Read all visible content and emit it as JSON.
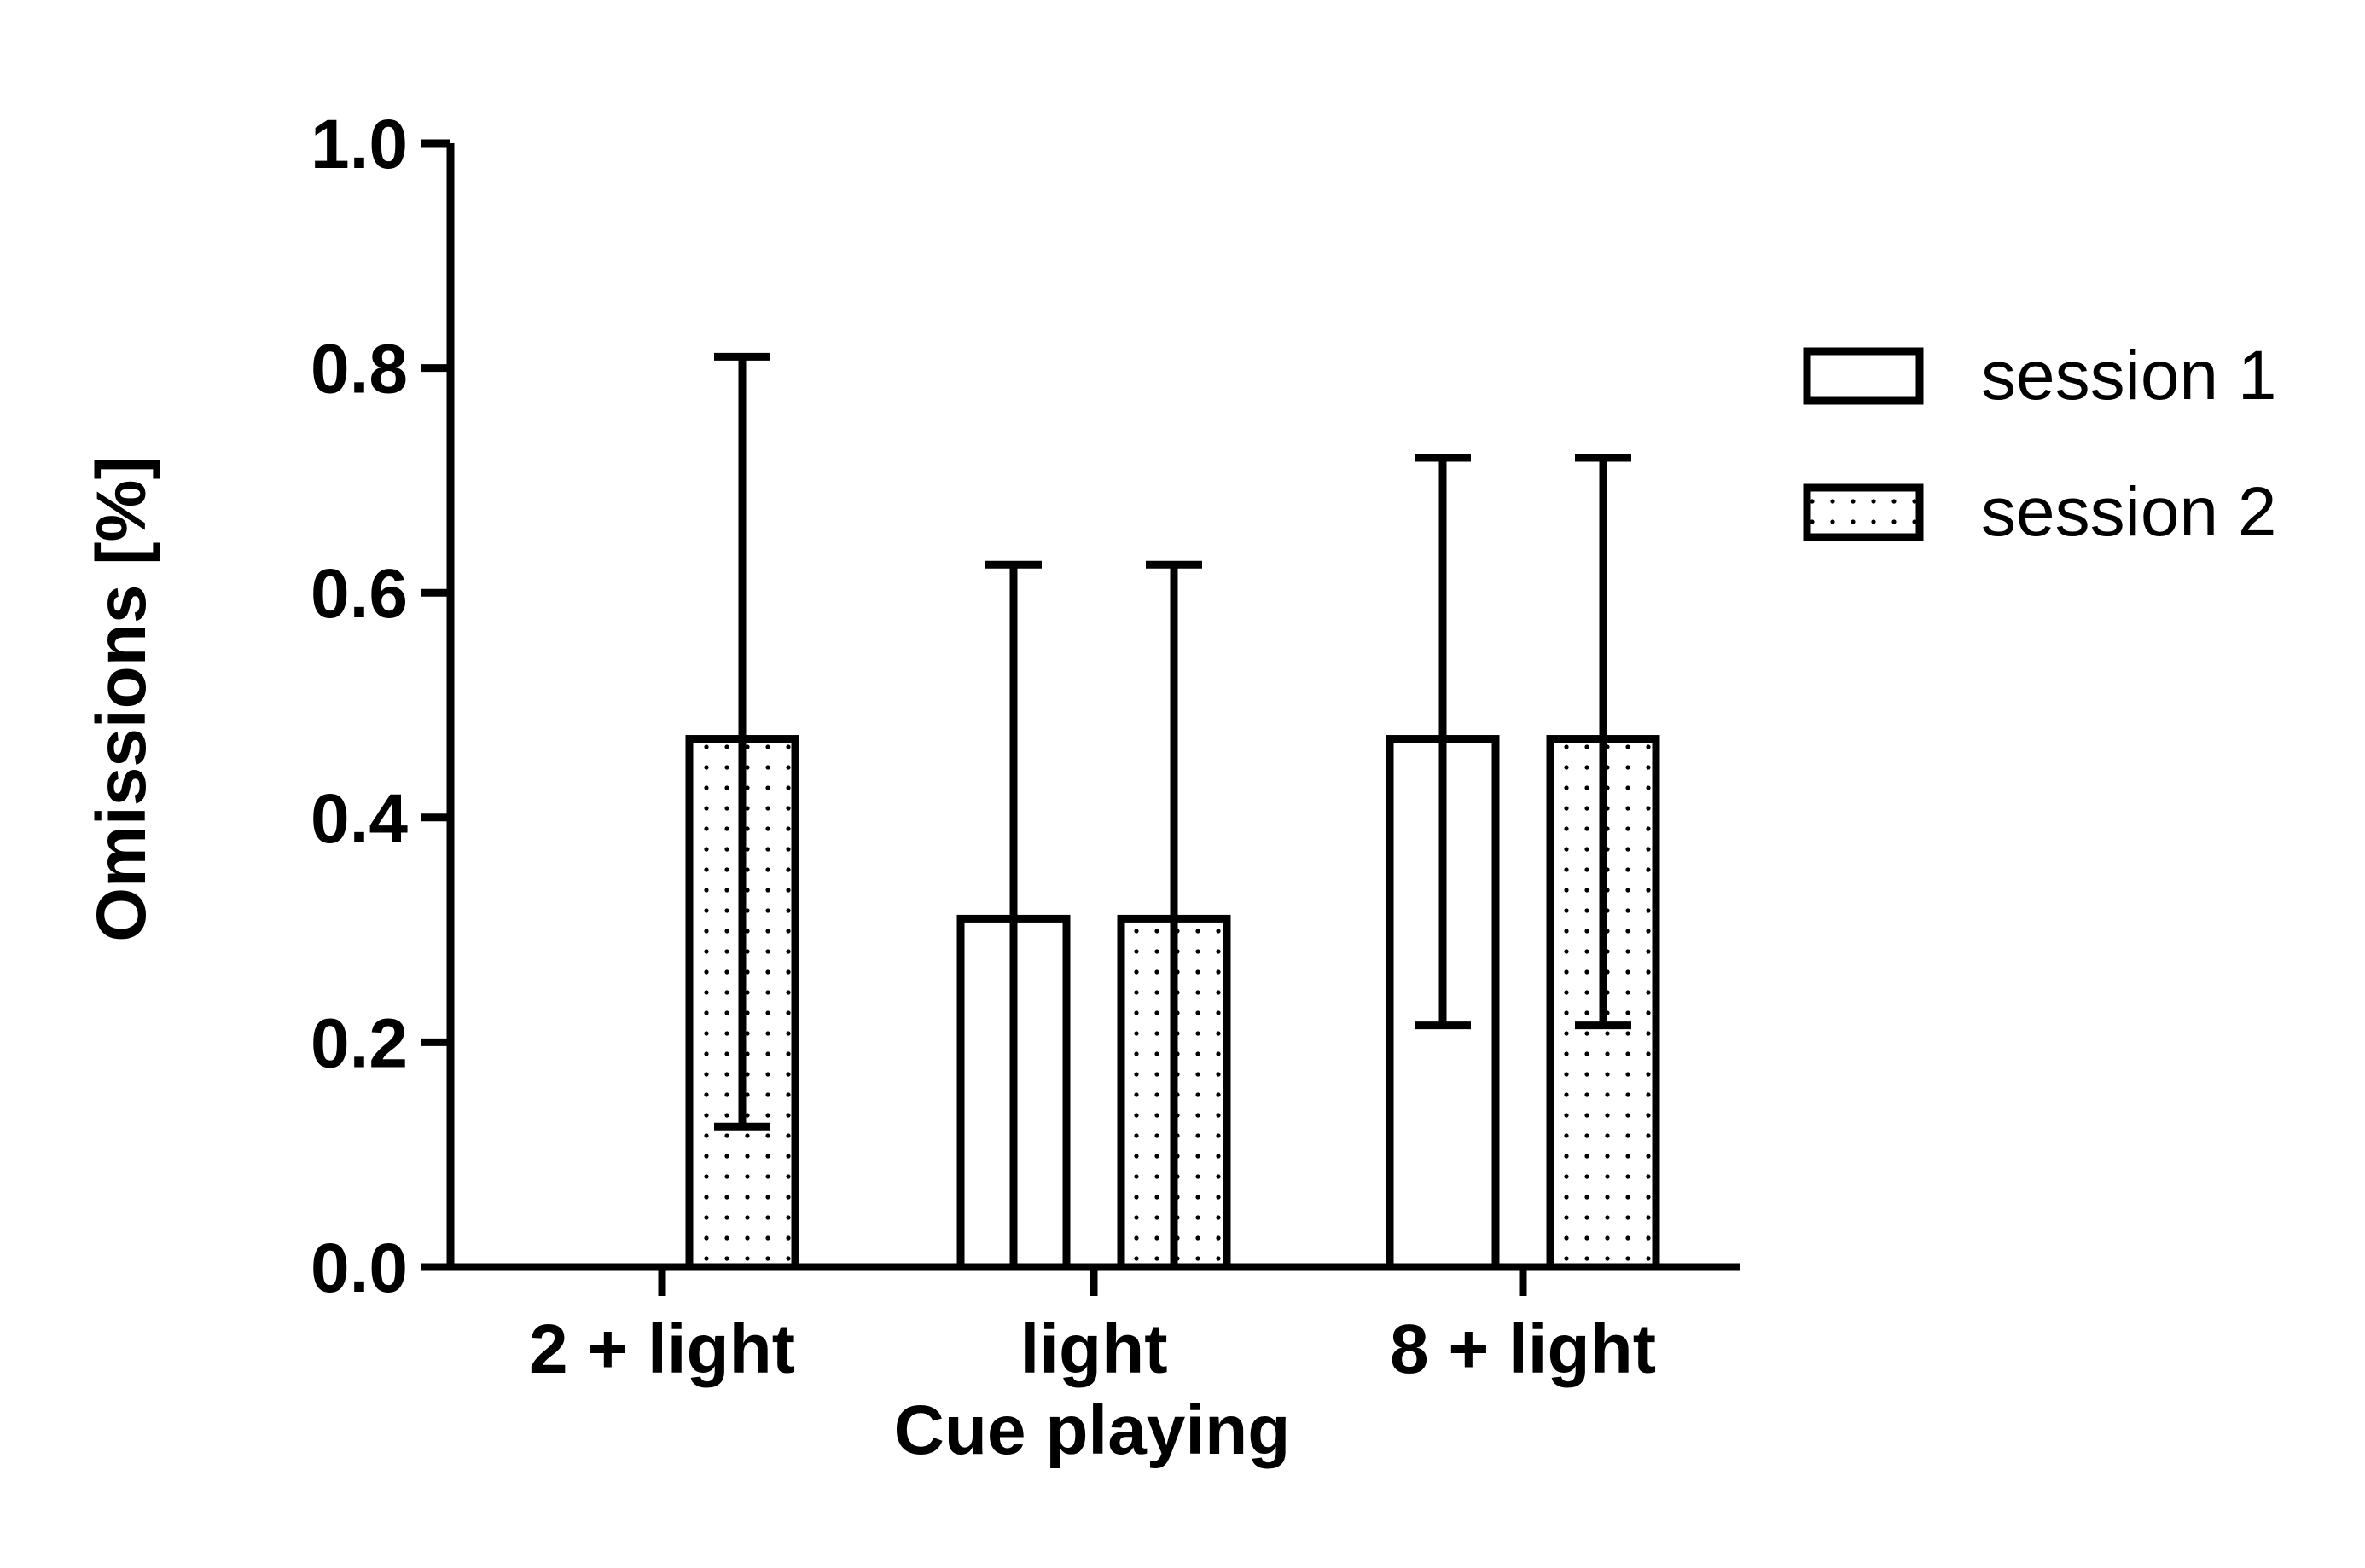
{
  "chart_data": {
    "type": "bar",
    "title": "",
    "xlabel": "Cue playing",
    "ylabel": "Omissions [%]",
    "ylim": [
      0,
      1.0
    ],
    "yticks": [
      "0.0",
      "0.2",
      "0.4",
      "0.6",
      "0.8",
      "1.0"
    ],
    "categories": [
      "2 + light",
      "light",
      "8 + light"
    ],
    "series": [
      {
        "name": "session 1",
        "pattern": "open",
        "values": [
          0,
          0.31,
          0.47
        ],
        "error_upper": [
          0,
          0.625,
          0.72
        ],
        "error_lower": [
          0,
          0,
          0.215
        ]
      },
      {
        "name": "session 2",
        "pattern": "dotted",
        "values": [
          0.47,
          0.31,
          0.47
        ],
        "error_upper": [
          0.81,
          0.625,
          0.72
        ],
        "error_lower": [
          0.125,
          0,
          0.215
        ]
      }
    ],
    "legend_position": "right",
    "grid": false,
    "colors": {
      "stroke": "#000000",
      "fill": "#ffffff"
    }
  }
}
